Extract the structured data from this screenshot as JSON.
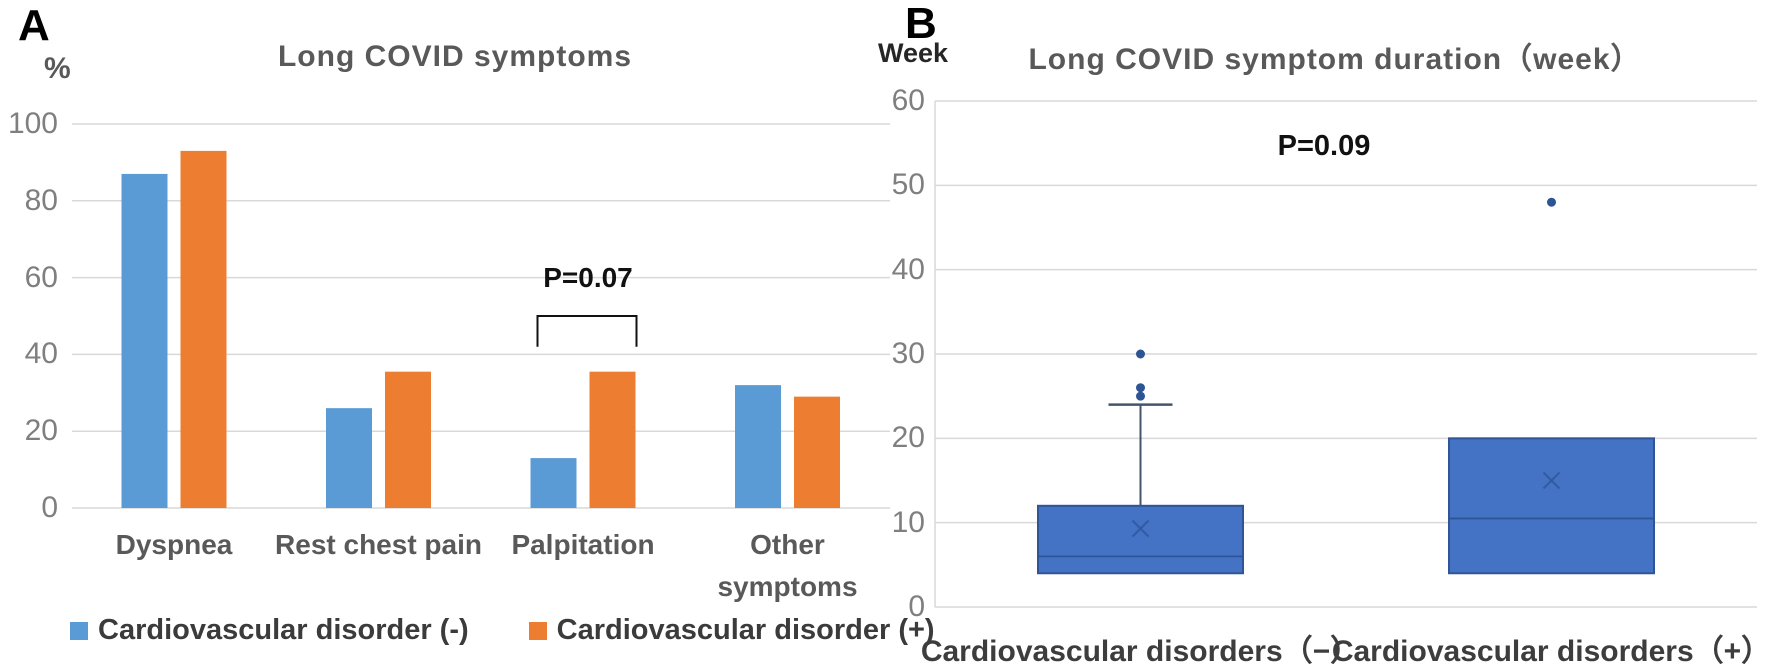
{
  "panels": {
    "a": {
      "label": "A"
    },
    "b": {
      "label": "B"
    }
  },
  "chart_data": [
    {
      "type": "bar",
      "panel": "A",
      "title": "Long COVID symptoms",
      "xlabel": "",
      "ylabel": "%",
      "ylim": [
        0,
        100
      ],
      "yticks": [
        0,
        20,
        40,
        60,
        80,
        100
      ],
      "grid": true,
      "legend_position": "bottom",
      "categories": [
        "Dyspnea",
        "Rest chest pain",
        "Palpitation",
        "Other\nsymptoms"
      ],
      "series": [
        {
          "name": "Cardiovascular disorder (-)",
          "color": "#5b9bd5",
          "values": [
            87,
            26,
            13,
            32
          ]
        },
        {
          "name": "Cardiovascular disorder (+)",
          "color": "#ed7d31",
          "values": [
            93,
            35.5,
            35.5,
            29
          ]
        }
      ],
      "annotation": {
        "text": "P=0.07",
        "category_index": 2,
        "bracket_y_value": 50,
        "bracket_leg_value": 42
      }
    },
    {
      "type": "boxplot",
      "panel": "B",
      "title": "Long COVID symptom duration（week）",
      "xlabel": "",
      "ylabel": "Week",
      "ylim": [
        0,
        60
      ],
      "yticks": [
        0,
        10,
        20,
        30,
        40,
        50,
        60
      ],
      "grid": true,
      "categories": [
        "Cardiovascular disorders（−）",
        "Cardiovascular disorders（+）"
      ],
      "boxes": [
        {
          "category": "Cardiovascular disorders（−）",
          "q1": 4,
          "median": 6,
          "q3": 12,
          "whisker_low": 4,
          "whisker_high": 24,
          "mean": 9.3,
          "outliers": [
            25,
            26,
            30
          ]
        },
        {
          "category": "Cardiovascular disorders（+）",
          "q1": 4,
          "median": 10.5,
          "q3": 20,
          "whisker_low": 4,
          "whisker_high": 20,
          "mean": 15,
          "outliers": [
            48
          ]
        }
      ],
      "annotation": {
        "text": "P=0.09"
      }
    }
  ],
  "colors": {
    "bar_negative": "#5b9bd5",
    "bar_positive": "#ed7d31",
    "box_fill": "#4472c4",
    "box_border": "#2f5597",
    "whisker": "#44546a",
    "outlier_dot": "#2d5493",
    "mean_marker": "#30599e",
    "gridline": "#d9d9d9",
    "tick_label": "#7f7f7f",
    "title": "#595959",
    "annotation": "#111111"
  }
}
